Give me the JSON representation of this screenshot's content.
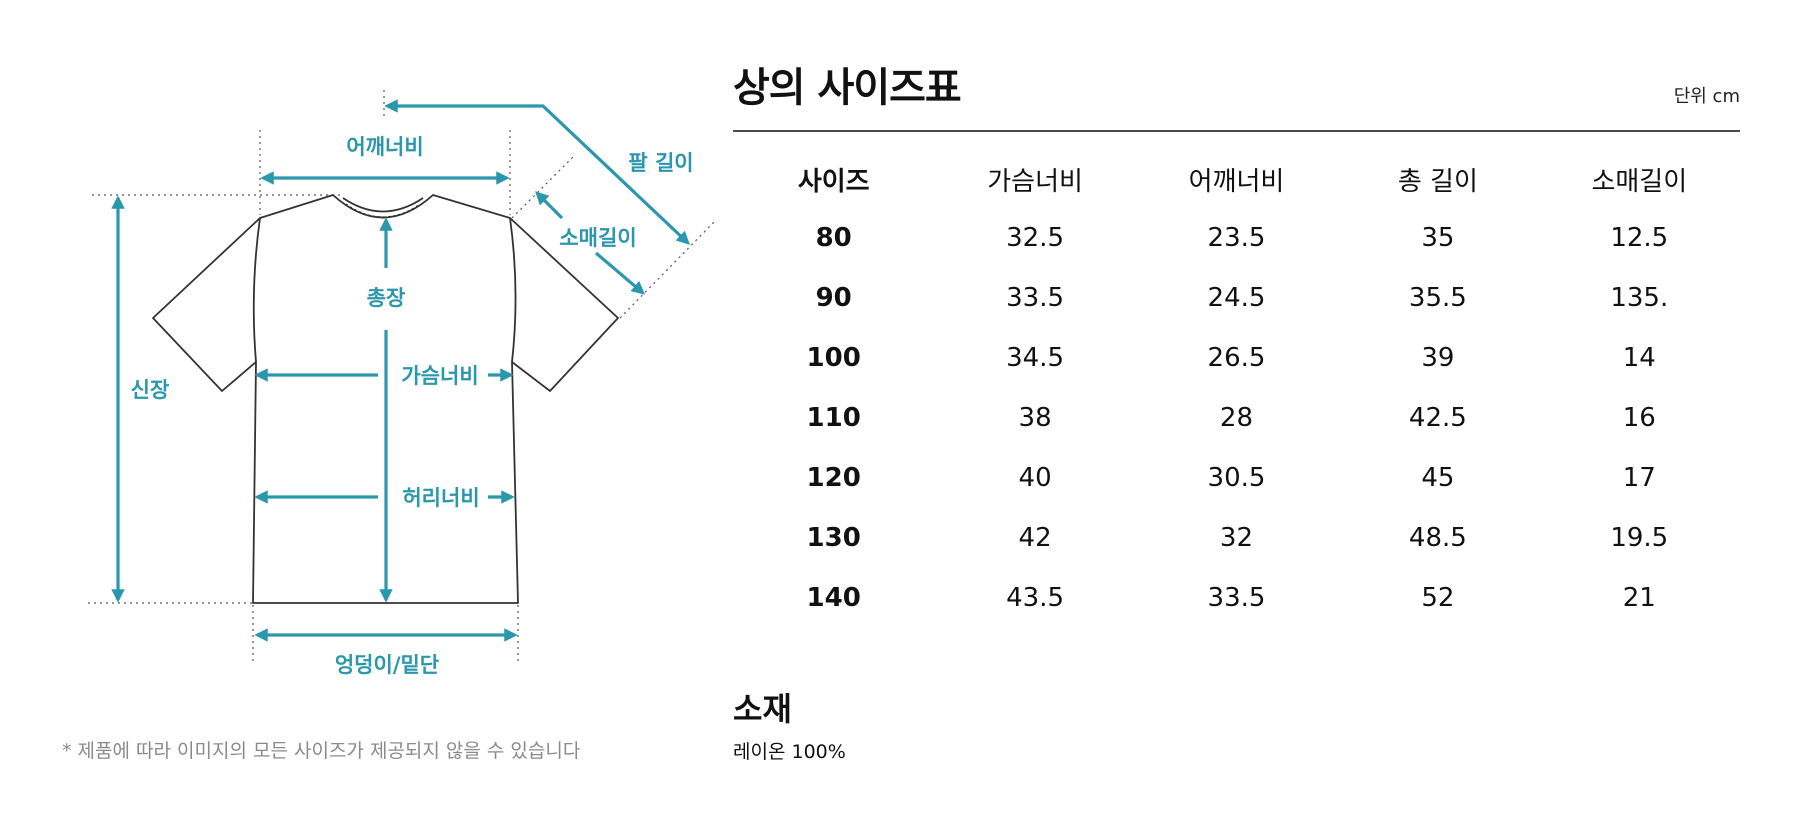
{
  "diagram": {
    "labels": {
      "shoulder": "어깨너비",
      "arm_length": "팔 길이",
      "sleeve": "소매길이",
      "total_length": "총장",
      "height": "신장",
      "chest": "가슴너비",
      "waist": "허리너비",
      "hem": "엉덩이/밑단"
    },
    "accent_color": "#2b97ad"
  },
  "note": "* 제품에 따라 이미지의 모든 사이즈가 제공되지 않을 수 있습니다",
  "size_chart": {
    "title": "상의 사이즈표",
    "unit": "단위 cm",
    "columns": [
      "사이즈",
      "가슴너비",
      "어깨너비",
      "총 길이",
      "소매길이"
    ],
    "rows": [
      [
        "80",
        "32.5",
        "23.5",
        "35",
        "12.5"
      ],
      [
        "90",
        "33.5",
        "24.5",
        "35.5",
        "135."
      ],
      [
        "100",
        "34.5",
        "26.5",
        "39",
        "14"
      ],
      [
        "110",
        "38",
        "28",
        "42.5",
        "16"
      ],
      [
        "120",
        "40",
        "30.5",
        "45",
        "17"
      ],
      [
        "130",
        "42",
        "32",
        "48.5",
        "19.5"
      ],
      [
        "140",
        "43.5",
        "33.5",
        "52",
        "21"
      ]
    ]
  },
  "material": {
    "title": "소재",
    "value": "레이온 100%"
  }
}
